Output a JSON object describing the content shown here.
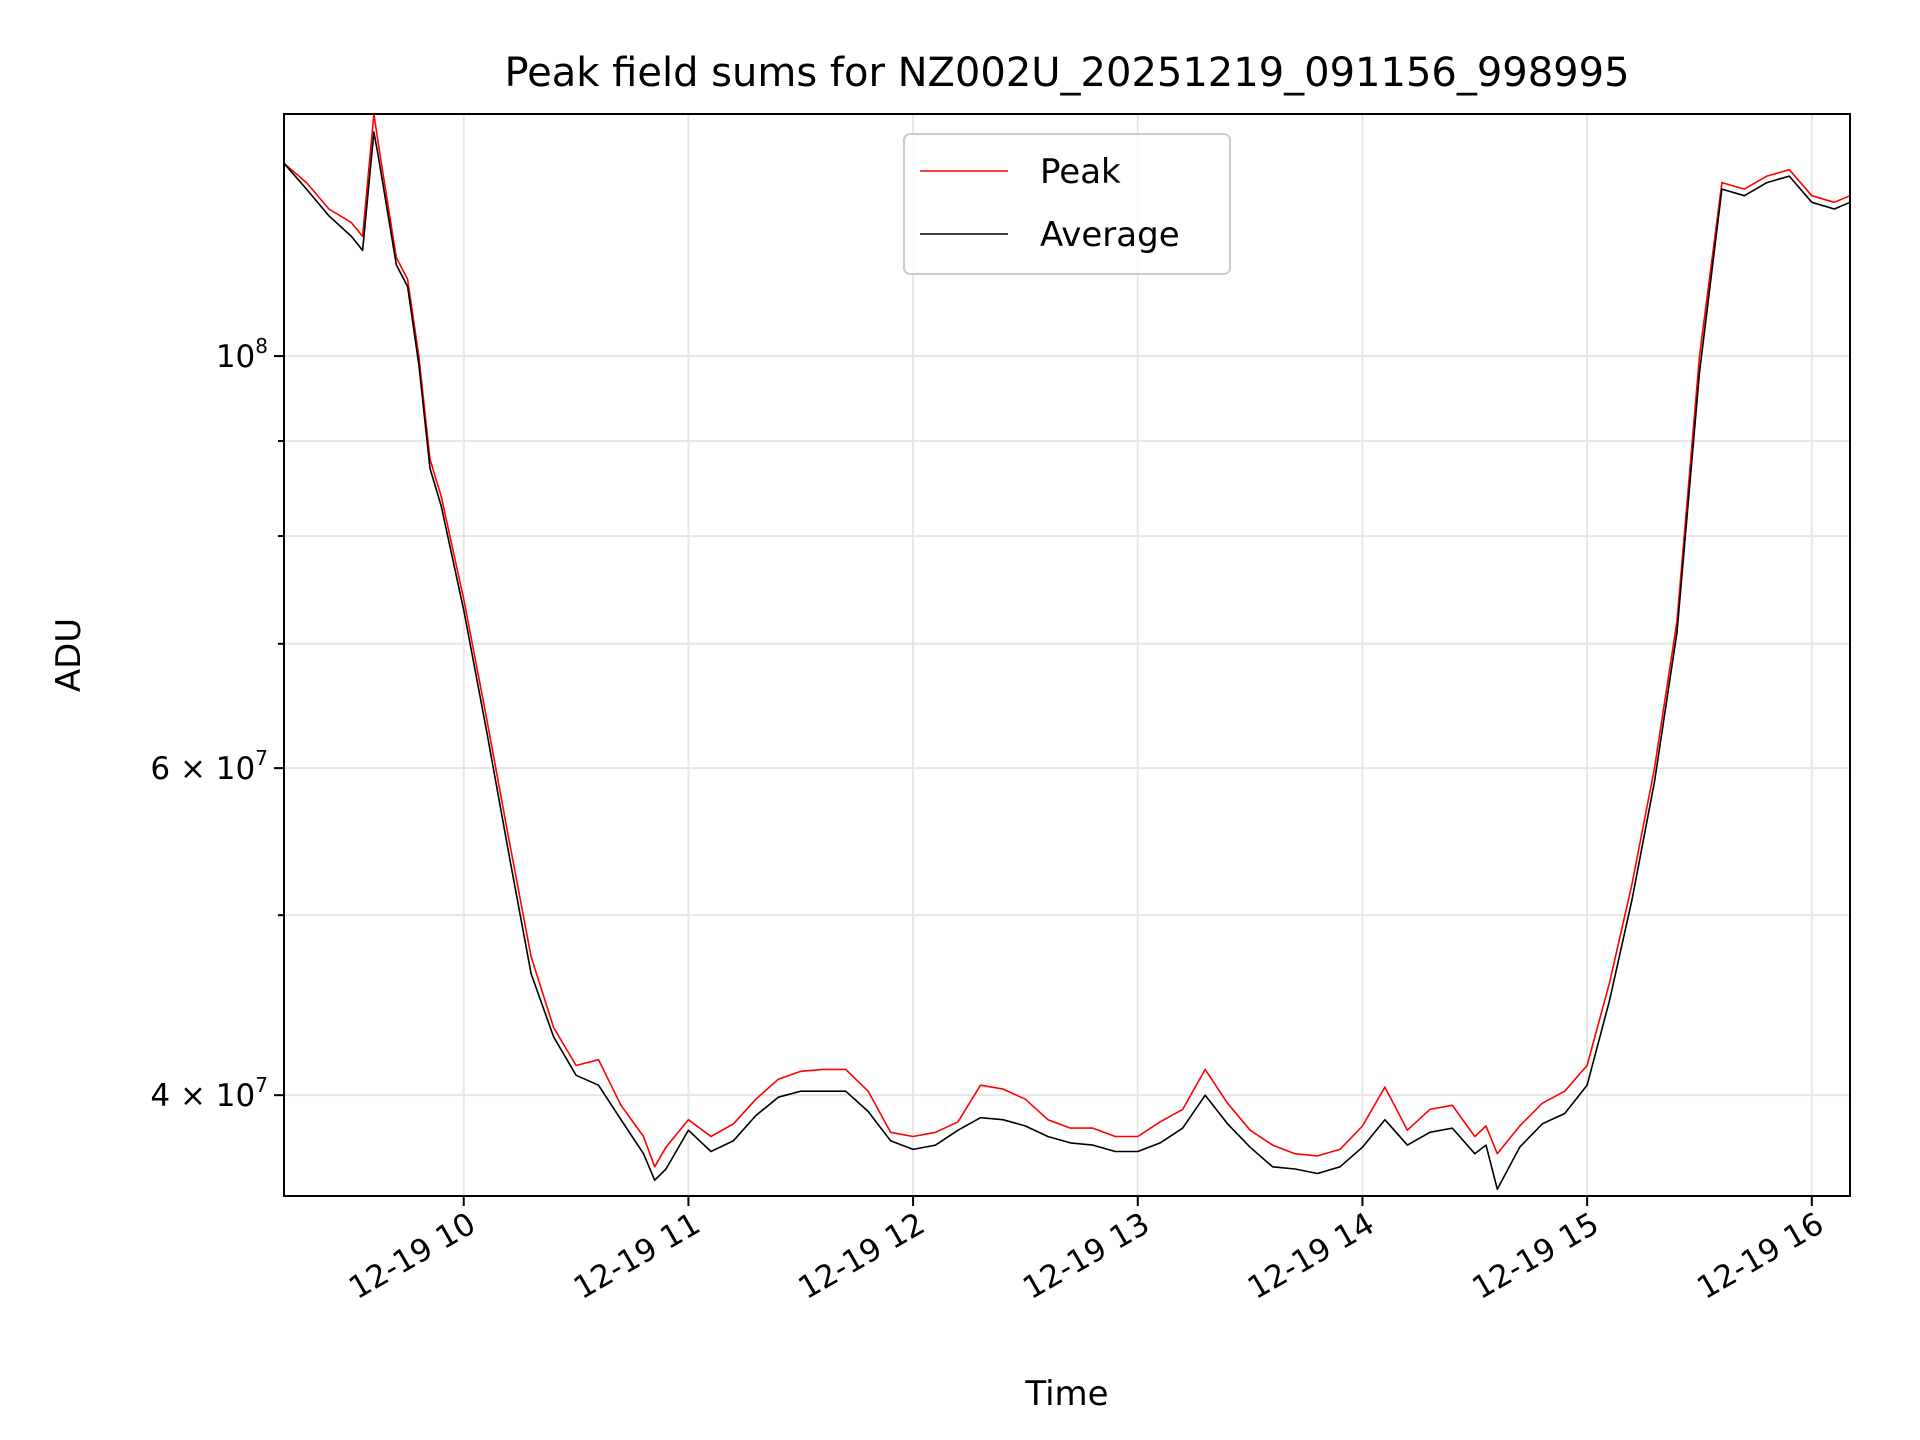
{
  "chart_data": {
    "type": "line",
    "title": "Peak field sums for NZ002U_20251219_091156_998995",
    "xlabel": "Time",
    "ylabel": "ADU",
    "yscale": "log",
    "ylim": [
      35300000,
      135000000
    ],
    "xlim_hours": [
      9.2,
      16.17
    ],
    "grid": true,
    "legend_position": "top-center",
    "x_ticks": [
      {
        "value": 10,
        "label": "12-19 10"
      },
      {
        "value": 11,
        "label": "12-19 11"
      },
      {
        "value": 12,
        "label": "12-19 12"
      },
      {
        "value": 13,
        "label": "12-19 13"
      },
      {
        "value": 14,
        "label": "12-19 14"
      },
      {
        "value": 15,
        "label": "12-19 15"
      },
      {
        "value": 16,
        "label": "12-19 16"
      }
    ],
    "y_ticks": [
      {
        "value": 100000000,
        "base": "10",
        "exp": "8"
      },
      {
        "value": 60000000,
        "base": "6 × 10",
        "exp": "7"
      },
      {
        "value": 40000000,
        "base": "4 × 10",
        "exp": "7"
      }
    ],
    "y_minor_ticks": [
      50000000,
      70000000,
      80000000,
      90000000
    ],
    "series": [
      {
        "name": "Peak",
        "color": "#ff0000",
        "x": [
          9.2,
          9.3,
          9.4,
          9.5,
          9.55,
          9.6,
          9.62,
          9.7,
          9.75,
          9.8,
          9.85,
          9.9,
          10.0,
          10.1,
          10.2,
          10.3,
          10.4,
          10.5,
          10.6,
          10.7,
          10.8,
          10.85,
          10.9,
          11.0,
          11.1,
          11.2,
          11.3,
          11.4,
          11.5,
          11.6,
          11.7,
          11.8,
          11.9,
          12.0,
          12.1,
          12.2,
          12.3,
          12.4,
          12.5,
          12.6,
          12.7,
          12.8,
          12.9,
          13.0,
          13.1,
          13.2,
          13.3,
          13.4,
          13.5,
          13.6,
          13.7,
          13.8,
          13.9,
          14.0,
          14.1,
          14.2,
          14.3,
          14.4,
          14.5,
          14.55,
          14.6,
          14.7,
          14.8,
          14.9,
          15.0,
          15.1,
          15.2,
          15.3,
          15.4,
          15.5,
          15.6,
          15.7,
          15.8,
          15.9,
          16.0,
          16.1,
          16.17
        ],
        "values": [
          127000000,
          124000000,
          120000000,
          118000000,
          116000000,
          135000000,
          130000000,
          113000000,
          110000000,
          100000000,
          88000000,
          84000000,
          74000000,
          64000000,
          55000000,
          47500000,
          43500000,
          41500000,
          41800000,
          39500000,
          38000000,
          36600000,
          37500000,
          38800000,
          38000000,
          38600000,
          39800000,
          40800000,
          41200000,
          41300000,
          41300000,
          40200000,
          38200000,
          38000000,
          38200000,
          38700000,
          40500000,
          40300000,
          39800000,
          38800000,
          38400000,
          38400000,
          38000000,
          38000000,
          38700000,
          39300000,
          41300000,
          39600000,
          38300000,
          37600000,
          37200000,
          37100000,
          37400000,
          38500000,
          40400000,
          38300000,
          39300000,
          39500000,
          38000000,
          38500000,
          37200000,
          38500000,
          39600000,
          40200000,
          41500000,
          46000000,
          52000000,
          60000000,
          72000000,
          100000000,
          124000000,
          123000000,
          125000000,
          126000000,
          122000000,
          121000000,
          122000000
        ]
      },
      {
        "name": "Average",
        "color": "#000000",
        "x": [
          9.2,
          9.3,
          9.4,
          9.5,
          9.55,
          9.6,
          9.62,
          9.7,
          9.75,
          9.8,
          9.85,
          9.9,
          10.0,
          10.1,
          10.2,
          10.3,
          10.4,
          10.5,
          10.6,
          10.7,
          10.8,
          10.85,
          10.9,
          11.0,
          11.1,
          11.2,
          11.3,
          11.4,
          11.5,
          11.6,
          11.7,
          11.8,
          11.9,
          12.0,
          12.1,
          12.2,
          12.3,
          12.4,
          12.5,
          12.6,
          12.7,
          12.8,
          12.9,
          13.0,
          13.1,
          13.2,
          13.3,
          13.4,
          13.5,
          13.6,
          13.7,
          13.8,
          13.9,
          14.0,
          14.1,
          14.2,
          14.3,
          14.4,
          14.5,
          14.55,
          14.6,
          14.7,
          14.8,
          14.9,
          15.0,
          15.1,
          15.2,
          15.3,
          15.4,
          15.5,
          15.6,
          15.7,
          15.8,
          15.9,
          16.0,
          16.1,
          16.17
        ],
        "values": [
          127000000,
          123000000,
          119000000,
          116000000,
          114000000,
          132000000,
          128000000,
          112000000,
          109000000,
          99000000,
          87000000,
          83000000,
          73000000,
          63000000,
          54000000,
          46500000,
          43000000,
          41000000,
          40500000,
          38800000,
          37200000,
          36000000,
          36500000,
          38300000,
          37300000,
          37800000,
          39000000,
          39900000,
          40200000,
          40200000,
          40200000,
          39200000,
          37800000,
          37400000,
          37600000,
          38300000,
          38900000,
          38800000,
          38500000,
          38000000,
          37700000,
          37600000,
          37300000,
          37300000,
          37700000,
          38400000,
          40000000,
          38600000,
          37500000,
          36600000,
          36500000,
          36300000,
          36600000,
          37500000,
          38800000,
          37600000,
          38200000,
          38400000,
          37200000,
          37600000,
          35600000,
          37500000,
          38600000,
          39100000,
          40500000,
          45000000,
          51000000,
          59000000,
          71000000,
          98000000,
          123000000,
          122000000,
          124000000,
          125000000,
          121000000,
          120000000,
          121000000
        ]
      }
    ]
  }
}
